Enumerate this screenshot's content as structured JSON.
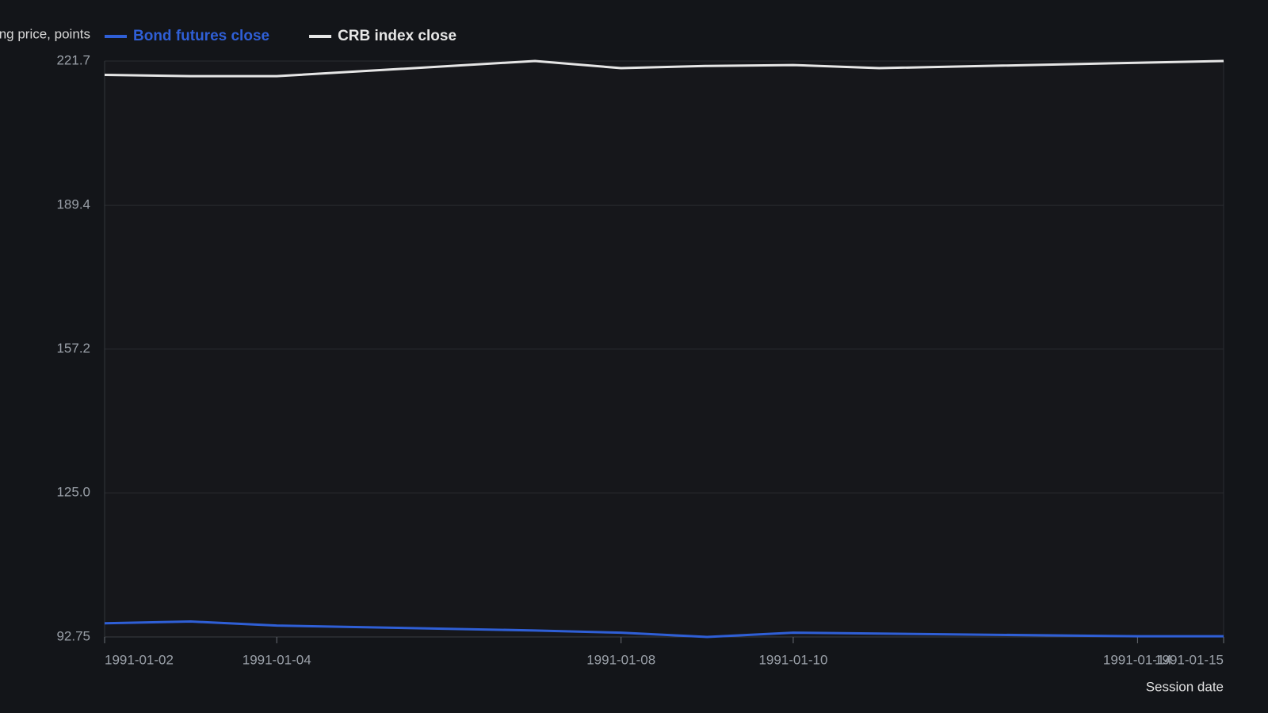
{
  "chart_data": {
    "type": "line",
    "y_label": "Closing price, points",
    "x_label": "Session date",
    "x": [
      "1991-01-02",
      "1991-01-03",
      "1991-01-04",
      "1991-01-07",
      "1991-01-08",
      "1991-01-09",
      "1991-01-10",
      "1991-01-11",
      "1991-01-14",
      "1991-01-15"
    ],
    "series": [
      {
        "name": "Bond futures close",
        "color": "#2f5fd6",
        "values": [
          95.8,
          96.2,
          95.3,
          94.2,
          93.7,
          92.75,
          93.7,
          93.5,
          92.9,
          92.9
        ]
      },
      {
        "name": "CRB index close",
        "color": "#e6e6e6",
        "values": [
          218.6,
          218.3,
          218.3,
          221.7,
          220.1,
          220.6,
          220.8,
          220.1,
          221.3,
          221.7
        ]
      }
    ],
    "xlim": [
      "1991-01-02",
      "1991-01-15"
    ],
    "xticks": [
      "1991-01-02",
      "1991-01-04",
      "1991-01-08",
      "1991-01-10",
      "1991-01-14",
      "1991-01-15"
    ],
    "ylim": [
      92.75,
      221.7
    ],
    "yticks": [
      92.75,
      {
        "value": 125,
        "label": "125.0"
      },
      157.2,
      189.4,
      221.7
    ],
    "grid": true
  }
}
